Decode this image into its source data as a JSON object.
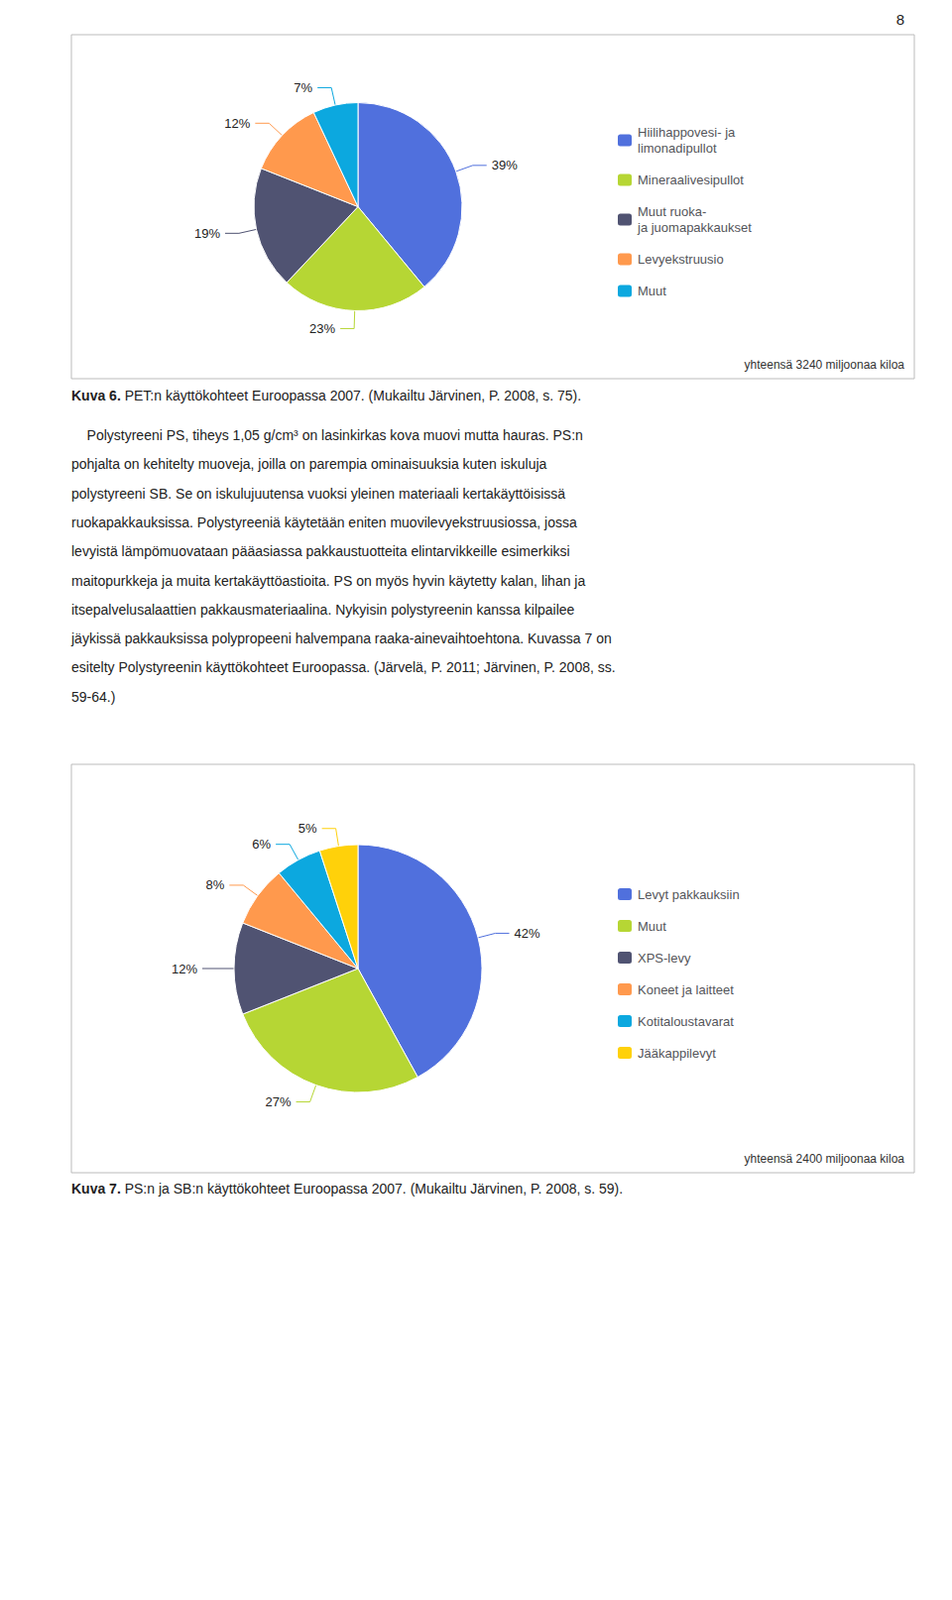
{
  "chart_data": [
    {
      "type": "pie",
      "title": "Kuva 6.",
      "subtitle": "PET:n käyttökohteet Euroopassa 2007. (Mukailtu Järvinen, P. 2008, s. 75).",
      "categories": [
        "Hiilihappovesi- ja\nlimonadipullot",
        "Mineraalivesipullot",
        "Muut ruoka-\nja juomapakkaukset",
        "Levyekstruusio",
        "Muut"
      ],
      "values": [
        39,
        23,
        19,
        12,
        7
      ],
      "value_labels": [
        "39%",
        "23%",
        "19%",
        "12%",
        "7%"
      ],
      "annotations": [
        "yhteensä 3240 miljoonaa kiloa"
      ],
      "data_labels": true,
      "legend": "right"
    },
    {
      "type": "pie",
      "title": "Kuva 7.",
      "subtitle": "PS:n ja SB:n käyttökohteet Euroopassa 2007. (Mukailtu Järvinen, P. 2008, s. 59).",
      "categories": [
        "Levyt pakkauksiin",
        "Muut",
        "XPS-levy",
        "Koneet ja laitteet",
        "Kotitaloustavarat",
        "Jääkappilevyt"
      ],
      "values": [
        42,
        27,
        12,
        8,
        6,
        5
      ],
      "value_labels": [
        "42%",
        "27%",
        "12%",
        "8%",
        "6%",
        "5%"
      ],
      "annotations": [
        "yhteensä 2400 miljoonaa kiloa"
      ],
      "data_labels": true,
      "legend": "right"
    }
  ],
  "page_number": "8",
  "paragraph": [
    "    Polystyreeni PS, tiheys 1,05 g/cm³ on lasinkirkas kova muovi mutta hauras. PS:n",
    "pohjalta on kehitelty muoveja, joilla on parempia ominaisuuksia kuten iskuluja",
    "polystyreeni SB. Se on iskulujuutensa vuoksi yleinen materiaali kertakäyttöisissä",
    "ruokapakkauksissa. Polystyreeniä käytetään eniten muovilevyekstruusiossa, jossa",
    "levyistä lämpömuovataan pääasiassa pakkaustuotteita elintarvikkeille esimerkiksi",
    "maitopurkkeja ja muita kertakäyttöastioita. PS on myös hyvin käytetty kalan, lihan ja",
    "itsepalvelusalaattien pakkausmateriaalina. Nykyisin polystyreenin kanssa kilpailee",
    "jäykissä pakkauksissa polypropeeni halvempana raaka-ainevaihtoehtona. Kuvassa 7 on",
    "esitelty Polystyreenin käyttökohteet Euroopassa. (Järvelä, P. 2011; Järvinen, P. 2008, ss.",
    "59-64.)"
  ]
}
